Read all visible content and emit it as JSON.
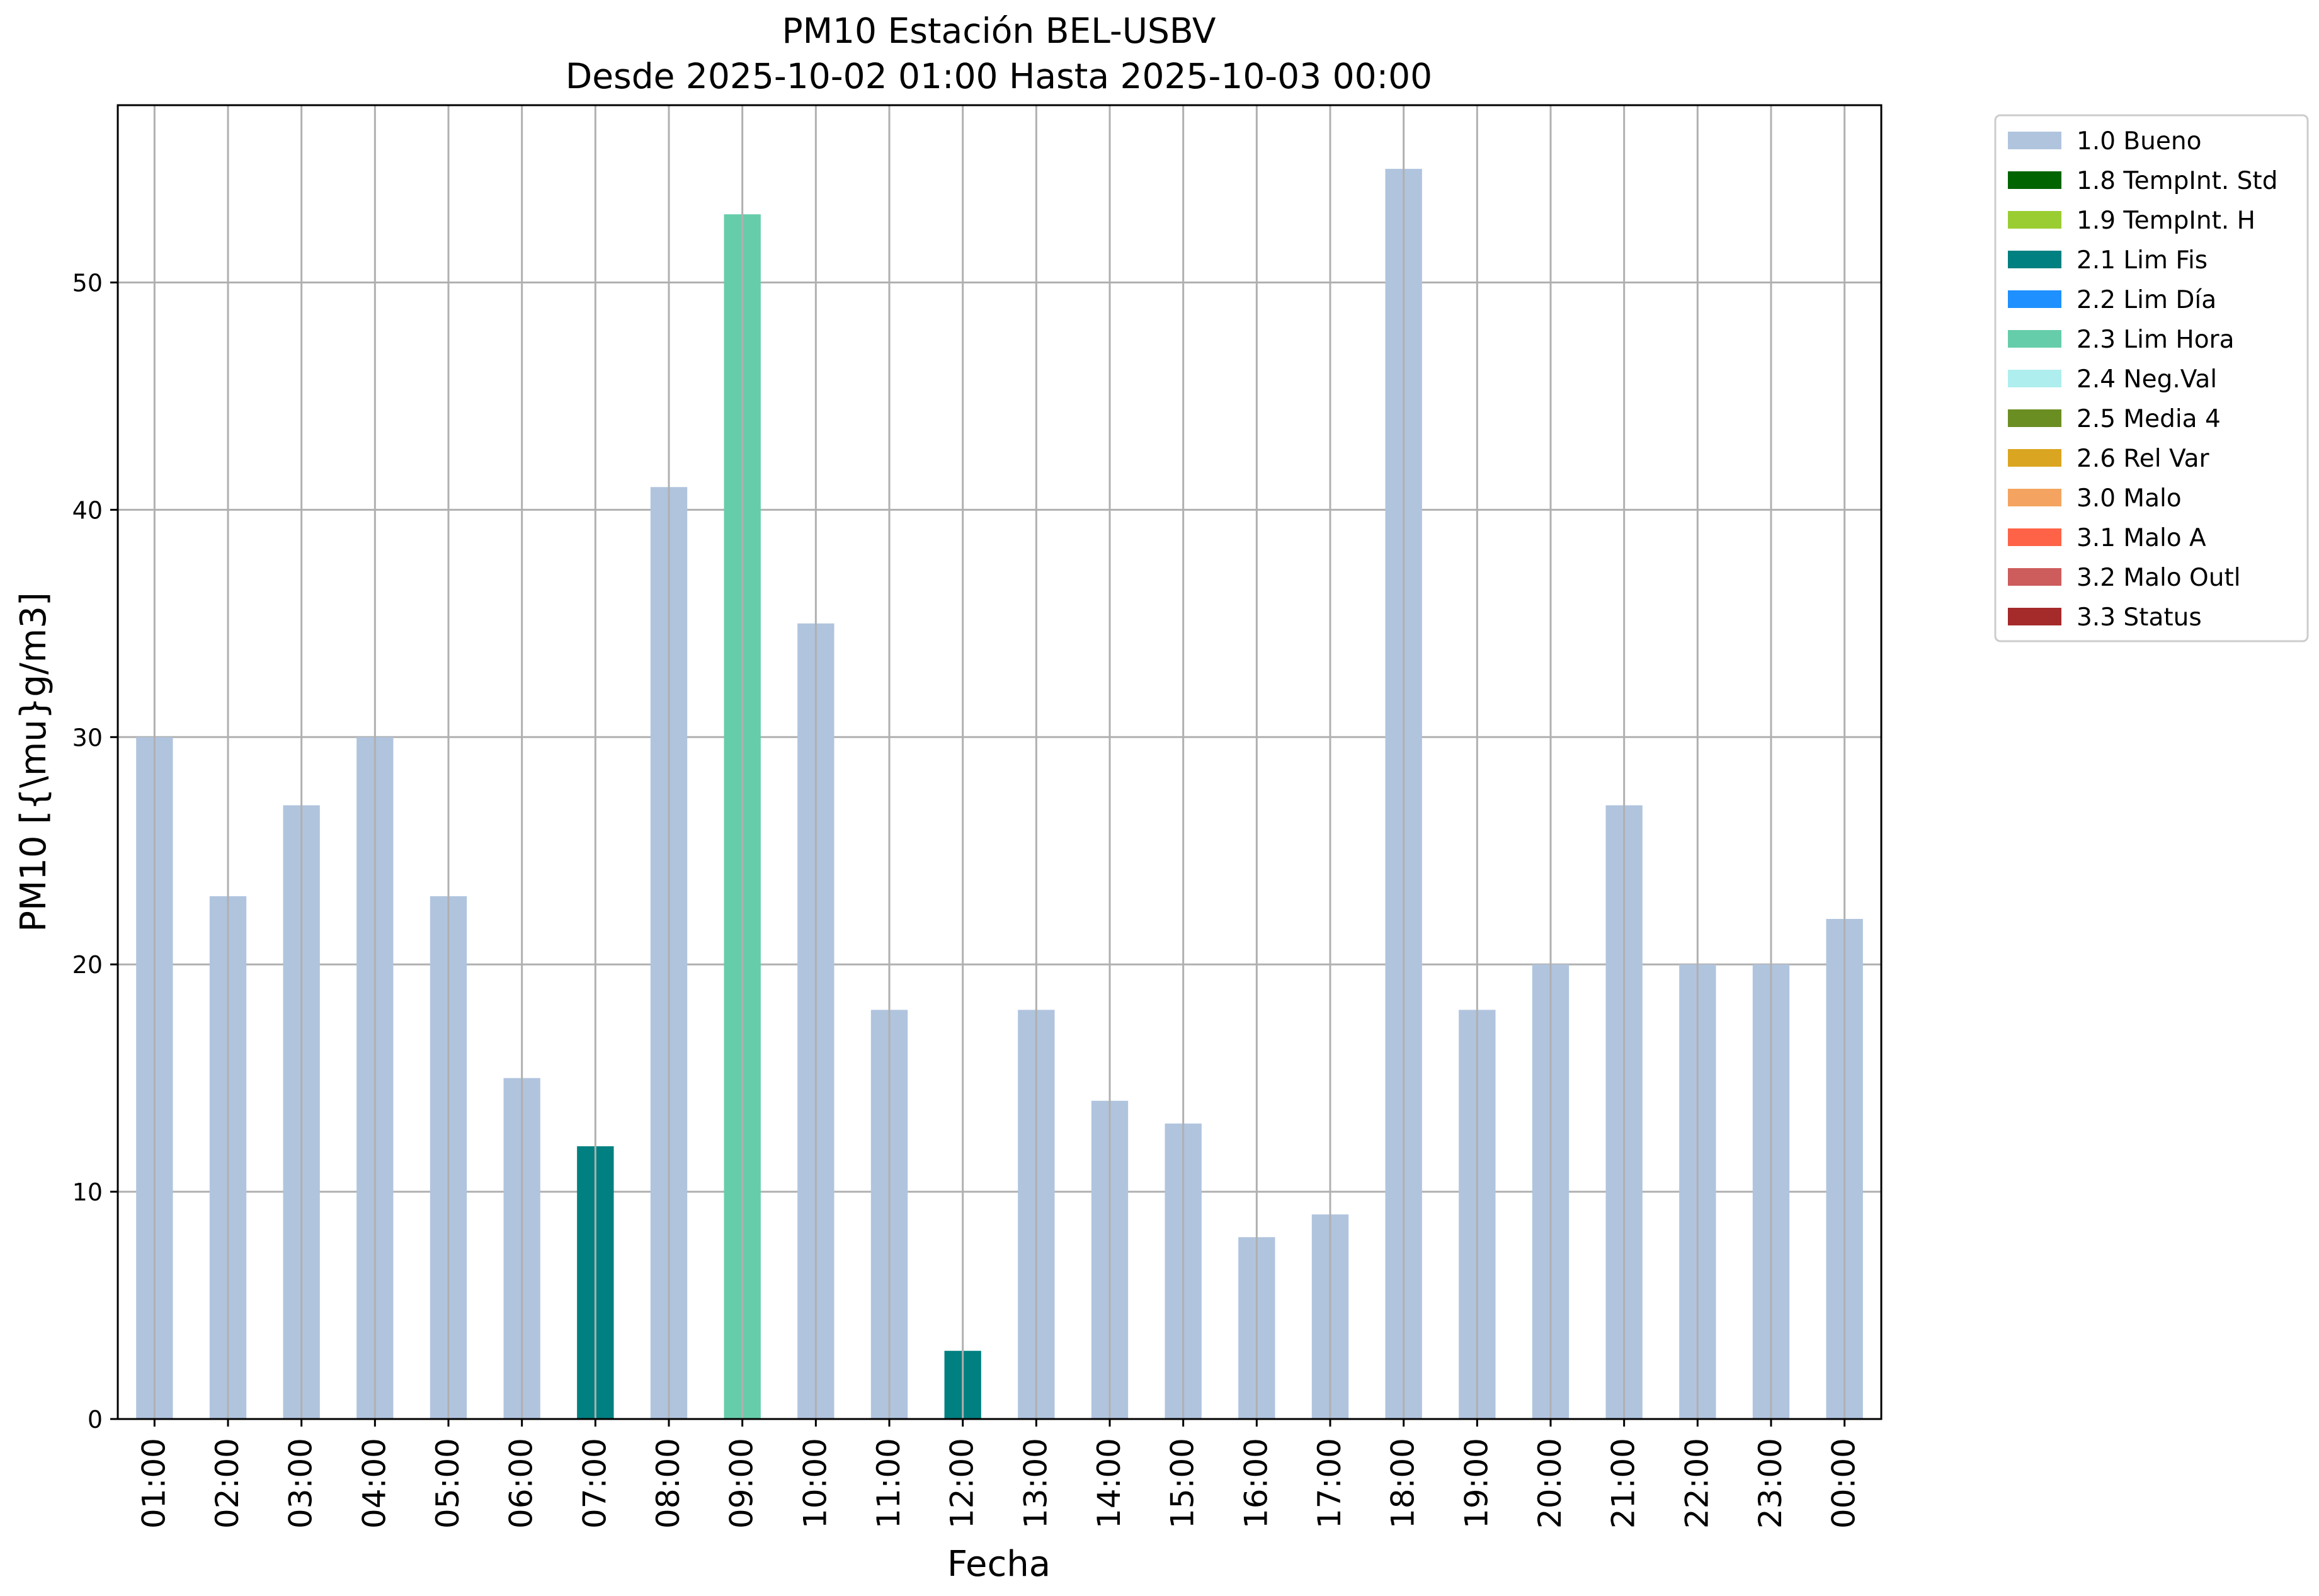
{
  "chart_data": {
    "type": "bar",
    "title": "PM10 Estación BEL-USBV",
    "subtitle": "Desde 2025-10-02 01:00 Hasta 2025-10-03 00:00",
    "xlabel": "Fecha",
    "ylabel": "PM10 [{\\mu}g/m3]",
    "ylim": [
      0,
      57.8
    ],
    "yticks": [
      0,
      10,
      20,
      30,
      40,
      50
    ],
    "grid": true,
    "legend_position": "outside-right-top",
    "categories": [
      "01:00",
      "02:00",
      "03:00",
      "04:00",
      "05:00",
      "06:00",
      "07:00",
      "08:00",
      "09:00",
      "10:00",
      "11:00",
      "12:00",
      "13:00",
      "14:00",
      "15:00",
      "16:00",
      "17:00",
      "18:00",
      "19:00",
      "20:00",
      "21:00",
      "22:00",
      "23:00",
      "00:00"
    ],
    "values": [
      30,
      23,
      27,
      30,
      23,
      15,
      12,
      41,
      53,
      35,
      18,
      3,
      18,
      14,
      13,
      8,
      9,
      55,
      18,
      20,
      27,
      20,
      20,
      22
    ],
    "flags": [
      "1.0 Bueno",
      "1.0 Bueno",
      "1.0 Bueno",
      "1.0 Bueno",
      "1.0 Bueno",
      "1.0 Bueno",
      "2.1 Lim Fis",
      "1.0 Bueno",
      "2.3 Lim Hora",
      "1.0 Bueno",
      "1.0 Bueno",
      "2.1 Lim Fis",
      "1.0 Bueno",
      "1.0 Bueno",
      "1.0 Bueno",
      "1.0 Bueno",
      "1.0 Bueno",
      "1.0 Bueno",
      "1.0 Bueno",
      "1.0 Bueno",
      "1.0 Bueno",
      "1.0 Bueno",
      "1.0 Bueno",
      "1.0 Bueno"
    ],
    "legend": [
      {
        "label": "1.0 Bueno",
        "color": "#b0c4de"
      },
      {
        "label": "1.8 TempInt. Std",
        "color": "#006400"
      },
      {
        "label": "1.9 TempInt. H",
        "color": "#9acd32"
      },
      {
        "label": "2.1 Lim Fis",
        "color": "#008080"
      },
      {
        "label": "2.2 Lim Día",
        "color": "#1e90ff"
      },
      {
        "label": "2.3 Lim Hora",
        "color": "#66cdaa"
      },
      {
        "label": "2.4 Neg.Val",
        "color": "#afeeee"
      },
      {
        "label": "2.5 Media 4",
        "color": "#6b8e23"
      },
      {
        "label": "2.6 Rel Var",
        "color": "#daa520"
      },
      {
        "label": "3.0 Malo",
        "color": "#f4a460"
      },
      {
        "label": "3.1 Malo A",
        "color": "#ff6347"
      },
      {
        "label": "3.2 Malo Outl",
        "color": "#cd5c5c"
      },
      {
        "label": "3.3 Status",
        "color": "#a52a2a"
      }
    ]
  }
}
